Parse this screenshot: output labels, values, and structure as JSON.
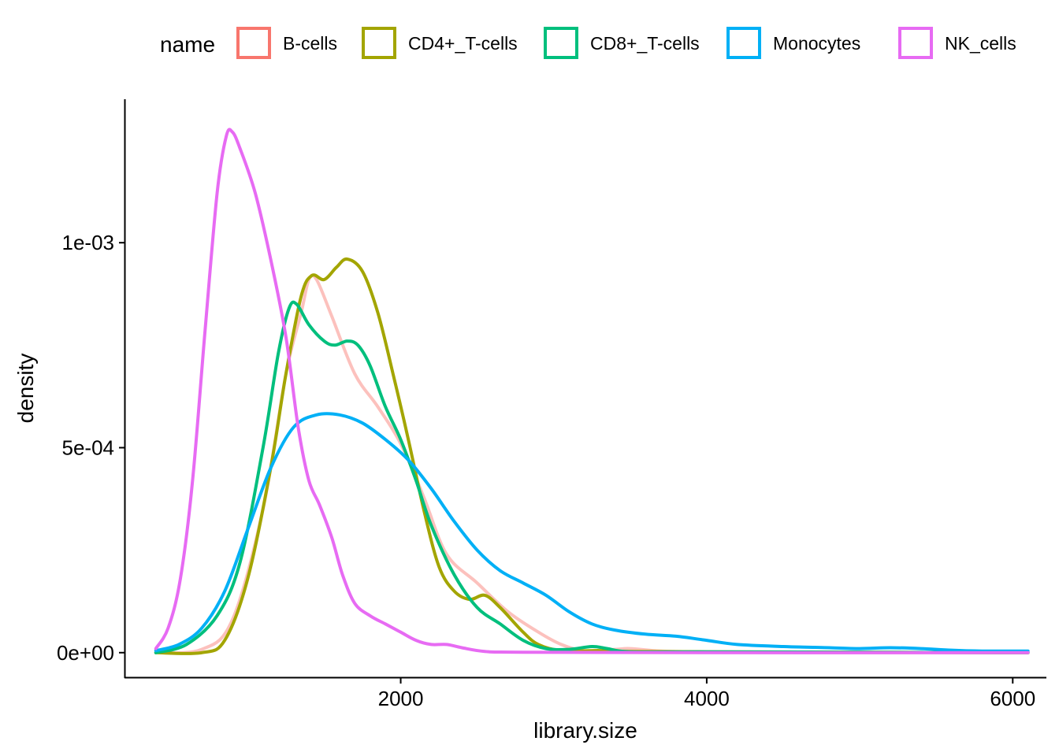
{
  "chart_data": {
    "type": "line",
    "subtype": "density",
    "xlabel": "library.size",
    "ylabel": "density",
    "legend_title": "name",
    "legend_position": "top",
    "grid": false,
    "xlim": [
      200,
      6220
    ],
    "ylim": [
      -6e-05,
      0.00135
    ],
    "x_ticks": [
      2000,
      4000,
      6000
    ],
    "x_tick_labels": [
      "2000",
      "4000",
      "6000"
    ],
    "y_ticks": [
      0,
      0.0005,
      0.001
    ],
    "y_tick_labels": [
      "0e+00",
      "5e-04",
      "1e-03"
    ],
    "series": [
      {
        "name": "B-cells",
        "color": "#F8766D",
        "line_opacity": 0.45,
        "points": [
          [
            400,
            0
          ],
          [
            700,
            8e-06
          ],
          [
            900,
            8e-05
          ],
          [
            1100,
            0.00035
          ],
          [
            1250,
            0.00068
          ],
          [
            1350,
            0.00083
          ],
          [
            1400,
            0.00091
          ],
          [
            1450,
            0.00091
          ],
          [
            1550,
            0.00082
          ],
          [
            1700,
            0.00068
          ],
          [
            1850,
            0.0006
          ],
          [
            2000,
            0.00051
          ],
          [
            2150,
            0.00038
          ],
          [
            2300,
            0.00024
          ],
          [
            2500,
            0.00017
          ],
          [
            2700,
            0.0001
          ],
          [
            2900,
            5e-05
          ],
          [
            3050,
            2e-05
          ],
          [
            3200,
            5e-06
          ],
          [
            3400,
            8e-06
          ],
          [
            3500,
            1e-05
          ],
          [
            3700,
            4e-06
          ],
          [
            4000,
            2e-06
          ],
          [
            5000,
            1e-06
          ],
          [
            6100,
            0
          ]
        ]
      },
      {
        "name": "CD4+_T-cells",
        "color": "#A3A500",
        "line_opacity": 1,
        "points": [
          [
            400,
            0
          ],
          [
            700,
            0
          ],
          [
            850,
            3e-05
          ],
          [
            1000,
            0.00018
          ],
          [
            1150,
            0.00045
          ],
          [
            1250,
            0.00068
          ],
          [
            1350,
            0.00087
          ],
          [
            1420,
            0.00092
          ],
          [
            1500,
            0.00091
          ],
          [
            1580,
            0.00094
          ],
          [
            1650,
            0.00096
          ],
          [
            1750,
            0.00093
          ],
          [
            1850,
            0.00083
          ],
          [
            1950,
            0.00068
          ],
          [
            2050,
            0.00052
          ],
          [
            2150,
            0.00035
          ],
          [
            2250,
            0.00021
          ],
          [
            2350,
            0.00015
          ],
          [
            2450,
            0.00013
          ],
          [
            2550,
            0.00014
          ],
          [
            2650,
            0.00011
          ],
          [
            2800,
            5e-05
          ],
          [
            2900,
            2e-05
          ],
          [
            3050,
            5e-06
          ],
          [
            3300,
            5e-06
          ],
          [
            3500,
            3e-06
          ],
          [
            4000,
            2e-06
          ],
          [
            5000,
            1e-06
          ],
          [
            6100,
            0
          ]
        ]
      },
      {
        "name": "CD8+_T-cells",
        "color": "#00BF7D",
        "line_opacity": 1,
        "points": [
          [
            400,
            0
          ],
          [
            600,
            2e-05
          ],
          [
            800,
            9e-05
          ],
          [
            950,
            0.00022
          ],
          [
            1100,
            0.0005
          ],
          [
            1200,
            0.00073
          ],
          [
            1270,
            0.00084
          ],
          [
            1320,
            0.00085
          ],
          [
            1400,
            0.0008
          ],
          [
            1500,
            0.00076
          ],
          [
            1570,
            0.00075
          ],
          [
            1650,
            0.00076
          ],
          [
            1720,
            0.00075
          ],
          [
            1800,
            0.0007
          ],
          [
            1900,
            0.0006
          ],
          [
            2000,
            0.00052
          ],
          [
            2100,
            0.00042
          ],
          [
            2200,
            0.00031
          ],
          [
            2350,
            0.00019
          ],
          [
            2500,
            0.00011
          ],
          [
            2650,
            7e-05
          ],
          [
            2800,
            3e-05
          ],
          [
            2950,
            1e-05
          ],
          [
            3100,
            8e-06
          ],
          [
            3250,
            1.5e-05
          ],
          [
            3350,
            1e-05
          ],
          [
            3500,
            2e-06
          ],
          [
            4000,
            2e-06
          ],
          [
            5000,
            1e-06
          ],
          [
            6100,
            0
          ]
        ]
      },
      {
        "name": "Monocytes",
        "color": "#00B0F6",
        "line_opacity": 1,
        "points": [
          [
            400,
            5e-06
          ],
          [
            550,
            2e-05
          ],
          [
            700,
            6e-05
          ],
          [
            850,
            0.00015
          ],
          [
            1000,
            0.0003
          ],
          [
            1150,
            0.00045
          ],
          [
            1300,
            0.00055
          ],
          [
            1450,
            0.00058
          ],
          [
            1600,
            0.00058
          ],
          [
            1750,
            0.00056
          ],
          [
            1900,
            0.00052
          ],
          [
            2050,
            0.00047
          ],
          [
            2200,
            0.0004
          ],
          [
            2350,
            0.00032
          ],
          [
            2500,
            0.00025
          ],
          [
            2650,
            0.0002
          ],
          [
            2800,
            0.00017
          ],
          [
            2950,
            0.00014
          ],
          [
            3100,
            0.0001
          ],
          [
            3250,
            7e-05
          ],
          [
            3400,
            5.5e-05
          ],
          [
            3600,
            4.5e-05
          ],
          [
            3800,
            4e-05
          ],
          [
            4000,
            3e-05
          ],
          [
            4200,
            2e-05
          ],
          [
            4500,
            1.5e-05
          ],
          [
            4800,
            1.2e-05
          ],
          [
            5000,
            1e-05
          ],
          [
            5200,
            1.2e-05
          ],
          [
            5400,
            1e-05
          ],
          [
            5600,
            6e-06
          ],
          [
            5800,
            4e-06
          ],
          [
            6100,
            4e-06
          ]
        ]
      },
      {
        "name": "NK_cells",
        "color": "#E76BF3",
        "line_opacity": 1,
        "points": [
          [
            400,
            1e-05
          ],
          [
            480,
            6e-05
          ],
          [
            560,
            0.00018
          ],
          [
            640,
            0.00042
          ],
          [
            720,
            0.00078
          ],
          [
            800,
            0.00112
          ],
          [
            860,
            0.00126
          ],
          [
            900,
            0.00127
          ],
          [
            950,
            0.00123
          ],
          [
            1050,
            0.00112
          ],
          [
            1150,
            0.00096
          ],
          [
            1250,
            0.00077
          ],
          [
            1330,
            0.00055
          ],
          [
            1400,
            0.00042
          ],
          [
            1470,
            0.00036
          ],
          [
            1550,
            0.00028
          ],
          [
            1620,
            0.00019
          ],
          [
            1700,
            0.00012
          ],
          [
            1800,
            9e-05
          ],
          [
            1900,
            7e-05
          ],
          [
            2000,
            5e-05
          ],
          [
            2100,
            3e-05
          ],
          [
            2200,
            2e-05
          ],
          [
            2300,
            2e-05
          ],
          [
            2400,
            1.2e-05
          ],
          [
            2550,
            3e-06
          ],
          [
            2800,
            1e-06
          ],
          [
            4000,
            0
          ],
          [
            6100,
            0
          ]
        ]
      }
    ]
  }
}
